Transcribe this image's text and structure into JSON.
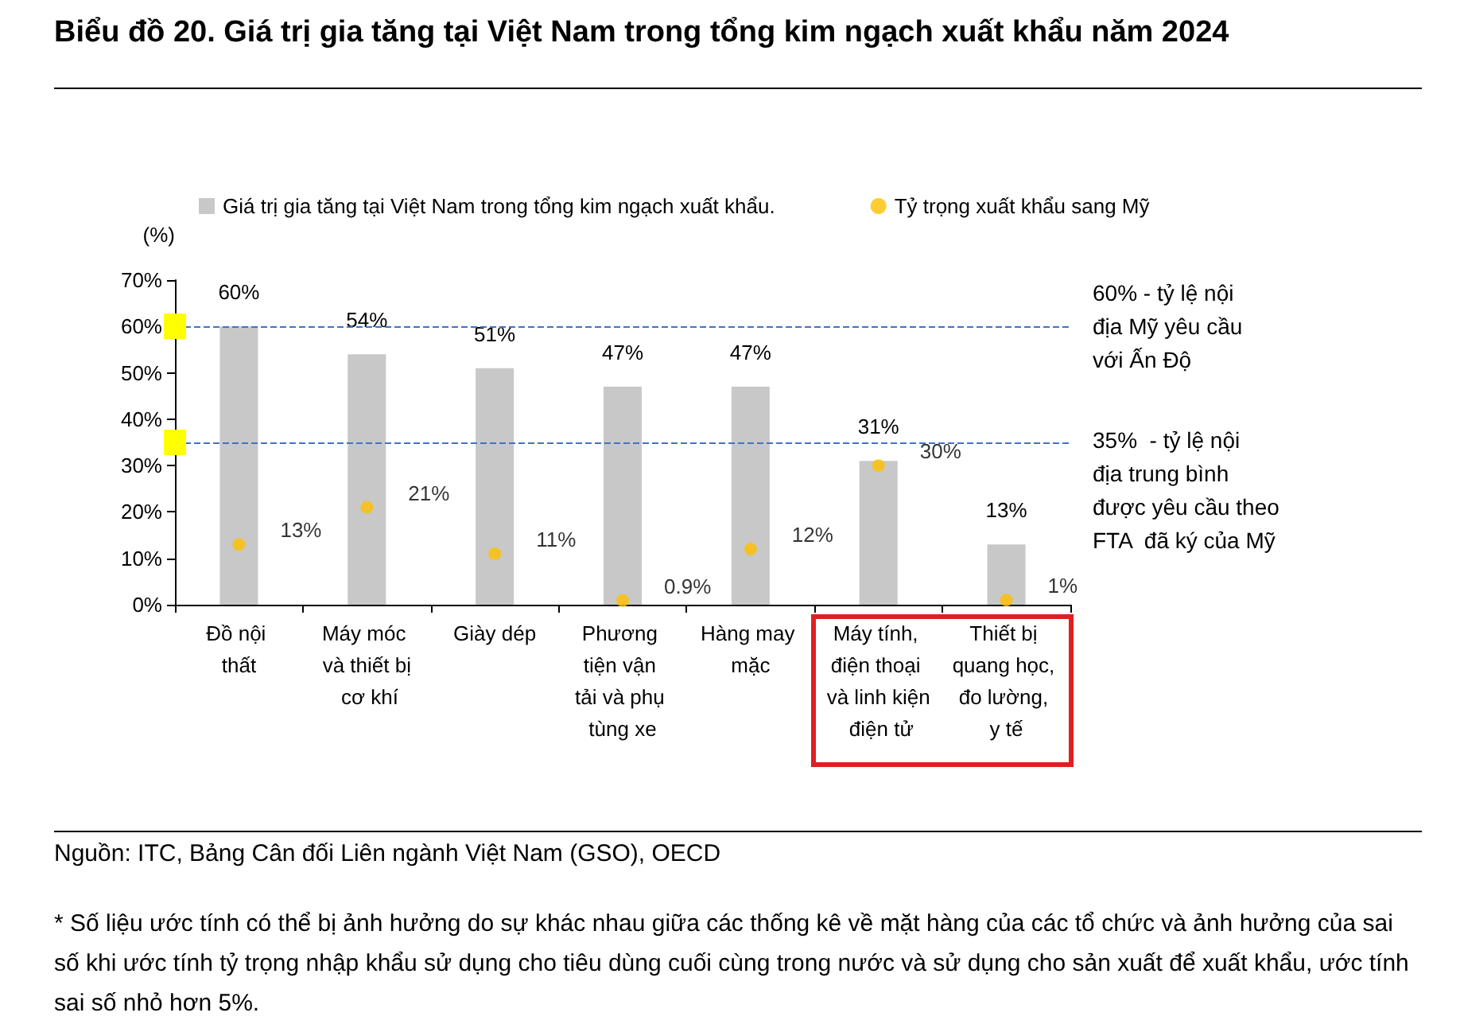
{
  "chart_data": {
    "type": "bar",
    "title": "Biểu đồ 20. Giá trị gia tăng tại Việt Nam trong tổng kim ngạch xuất khẩu năm 2024",
    "ylabel": "(%)",
    "categories": [
      "Đồ nội thất",
      "Máy móc và thiết bị cơ khí",
      "Giày dép",
      "Phương tiện vận tải và phụ tùng xe",
      "Hàng may mặc",
      "Máy tính, điện thoại và linh kiện điện tử",
      "Thiết bị quang học, đo lường, y tế"
    ],
    "series": [
      {
        "name": "Giá trị gia tăng tại Việt Nam trong tổng kim ngạch xuất khẩu.",
        "color": "#c8c8c8",
        "values": [
          60,
          54,
          51,
          47,
          47,
          31,
          13
        ],
        "value_labels": [
          "60%",
          "54%",
          "51%",
          "47%",
          "47%",
          "31%",
          "13%"
        ]
      },
      {
        "name": "Tỷ trọng xuất khẩu sang Mỹ",
        "type": "scatter",
        "marker": "circle",
        "color": "#ffc000",
        "values": [
          13,
          21,
          11,
          0.9,
          12,
          30,
          1
        ],
        "value_labels": [
          "13%",
          "21%",
          "11%",
          "0.9%",
          "12%",
          "30%",
          "1%"
        ]
      }
    ],
    "ylim": [
      0,
      70
    ],
    "yticks": [
      {
        "value": 0,
        "label": "0%"
      },
      {
        "value": 10,
        "label": "10%"
      },
      {
        "value": 20,
        "label": "20%"
      },
      {
        "value": 30,
        "label": "30%"
      },
      {
        "value": 40,
        "label": "40%"
      },
      {
        "value": 50,
        "label": "50%"
      },
      {
        "value": 60,
        "label": "60%"
      },
      {
        "value": 70,
        "label": "70%"
      }
    ],
    "ref_lines": [
      {
        "axis": "y",
        "value": 60,
        "label": "60% - tỷ lệ nội địa Mỹ yêu cầu với Ấn Độ",
        "color": "#4472c4",
        "line_style": "dashed"
      },
      {
        "axis": "y",
        "value": 35,
        "label": "35%  - tỷ lệ nội địa trung bình được yêu cầu theo FTA  đã ký của Mỹ",
        "color": "#4472c4",
        "line_style": "dashed"
      }
    ],
    "grid": false,
    "legend": "top",
    "annotations": [
      "Nguồn: ITC, Bảng Cân đối Liên ngành Việt Nam (GSO), OECD",
      "* Số liệu ước tính có thể bị ảnh hưởng do sự khác nhau giữa các thống kê về mặt hàng của các tổ chức và ảnh hưởng của sai số khi ước tính tỷ trọng nhập khẩu sử dụng cho tiêu dùng cuối cùng trong nước và sử dụng cho sản xuất để xuất khẩu, ước tính sai số nhỏ hơn 5%."
    ]
  }
}
